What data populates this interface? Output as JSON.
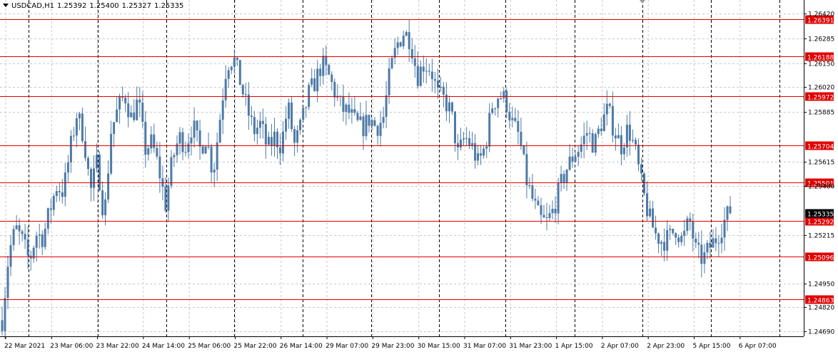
{
  "header": {
    "symbol": "USDCAD,H1",
    "open": "1.25392",
    "high": "1.25400",
    "low": "1.25327",
    "close": "1.25335"
  },
  "colors": {
    "candle": "#4d7aa6",
    "level_line": "#e00000",
    "level_label_bg": "#e00000",
    "current_price_bg": "#000000",
    "grid": "#c8c8c8",
    "separator": "#000000"
  },
  "chart_data": {
    "type": "candlestick",
    "symbol": "USDCAD",
    "timeframe": "H1",
    "y_ticks": [
      "1.26420",
      "1.26285",
      "1.26150",
      "1.26020",
      "1.25885",
      "1.25615",
      "1.25480",
      "1.25215",
      "1.24950",
      "1.24820",
      "1.24690"
    ],
    "ylim": [
      1.2467,
      1.2648
    ],
    "x_ticks": [
      "22 Mar 2021",
      "23 Mar 06:00",
      "23 Mar 22:00",
      "24 Mar 14:00",
      "25 Mar 06:00",
      "25 Mar 22:00",
      "26 Mar 14:00",
      "29 Mar 07:00",
      "29 Mar 23:00",
      "30 Mar 15:00",
      "31 Mar 07:00",
      "31 Mar 23:00",
      "1 Apr 15:00",
      "2 Apr 07:00",
      "2 Apr 23:00",
      "5 Apr 15:00",
      "6 Apr 07:00"
    ],
    "levels": [
      "1.26391",
      "1.26188",
      "1.25972",
      "1.25704",
      "1.25501",
      "1.25292",
      "1.25096",
      "1.24863"
    ],
    "current_price": "1.25335",
    "path": [
      1.2475,
      1.2512,
      1.2525,
      1.2518,
      1.2507,
      1.2522,
      1.252,
      1.2535,
      1.2548,
      1.2545,
      1.2568,
      1.2588,
      1.2575,
      1.2545,
      1.2562,
      1.253,
      1.2578,
      1.259,
      1.2598,
      1.2585,
      1.2595,
      1.2568,
      1.2572,
      1.2558,
      1.2538,
      1.2562,
      1.2575,
      1.257,
      1.2582,
      1.2568,
      1.2575,
      1.2555,
      1.2585,
      1.2615,
      1.2618,
      1.2605,
      1.259,
      1.2578,
      1.2582,
      1.2568,
      1.2575,
      1.257,
      1.2592,
      1.257,
      1.2582,
      1.2598,
      1.2605,
      1.2615,
      1.2608,
      1.2598,
      1.259,
      1.2588,
      1.2582,
      1.258,
      1.2585,
      1.258,
      1.2585,
      1.261,
      1.2625,
      1.2632,
      1.2628,
      1.2608,
      1.2615,
      1.2612,
      1.2598,
      1.2595,
      1.2588,
      1.2565,
      1.2575,
      1.257,
      1.256,
      1.257,
      1.2592,
      1.2598,
      1.2595,
      1.2582,
      1.2575,
      1.2552,
      1.254,
      1.253,
      1.2528,
      1.2535,
      1.2548,
      1.2558,
      1.2565,
      1.257,
      1.2578,
      1.257,
      1.2582,
      1.259,
      1.2578,
      1.257,
      1.258,
      1.2568,
      1.2548,
      1.2532,
      1.2522,
      1.2518,
      1.252,
      1.2525,
      1.2518,
      1.253,
      1.2512,
      1.2508,
      1.2515,
      1.252,
      1.2528,
      1.2535
    ]
  }
}
